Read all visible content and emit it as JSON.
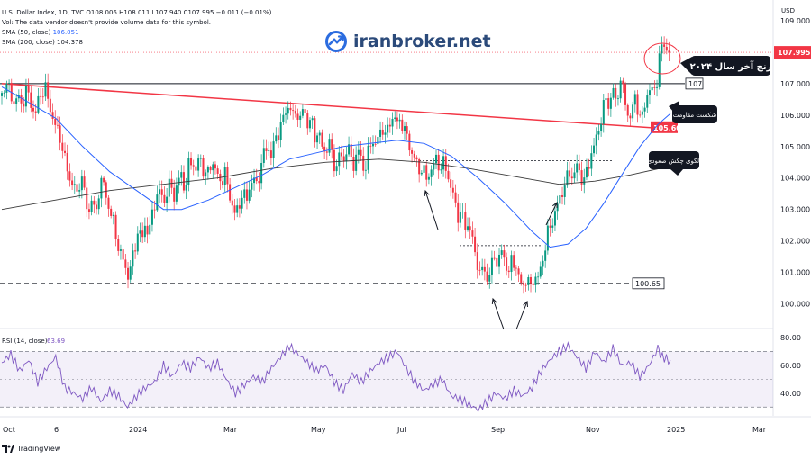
{
  "header": {
    "title": "U.S. Dollar Index, 1D, TVC",
    "ohlc": "O108.006 H108.011 L107.940 C107.995 −0.011 (−0.01%)",
    "vol": "Vol: The data vendor doesn't provide volume data for this symbol.",
    "sma50_label": "SMA (50, close)",
    "sma50_value": "106.051",
    "sma200_label": "SMA (200, close)",
    "sma200_value": "104.378"
  },
  "logo": {
    "text": "iranbroker.net"
  },
  "footer": {
    "brand": "TradingView"
  },
  "colors": {
    "up": "#089981",
    "down": "#f23645",
    "sma50": "#2962ff",
    "sma200": "#3a3a3a",
    "rsi": "#7e57c2",
    "trendline": "#f23645",
    "annotation_box": "#131722"
  },
  "chart_data": [
    {
      "type": "candlestick",
      "unit": "USD",
      "ylim": [
        99.3,
        109.6
      ],
      "y_ticks": [
        "109.000",
        "108.000",
        "107.000",
        "106.000",
        "105.000",
        "104.000",
        "103.000",
        "102.000",
        "101.000",
        "100.000"
      ],
      "x_ticks": [
        "Oct",
        "6",
        "2024",
        "Mar",
        "May",
        "Jul",
        "Sep",
        "Nov",
        "2025",
        "Mar"
      ],
      "last_price": "107.995",
      "levels": [
        {
          "label": "107",
          "value": 107.0
        },
        {
          "label": "105.60",
          "value": 105.6
        },
        {
          "label": "100.65",
          "value": 100.65
        }
      ],
      "annotations": [
        {
          "text": "رنج آخر سال ۲۰۲۴"
        },
        {
          "text": "شکست مقاومت"
        },
        {
          "text": "الگوی چکش صعودی"
        }
      ],
      "close_path": [
        [
          0,
          106.6
        ],
        [
          4,
          107.1
        ],
        [
          8,
          106.8
        ],
        [
          13,
          106.4
        ],
        [
          18,
          106.6
        ],
        [
          22,
          106.3
        ],
        [
          27,
          106.8
        ],
        [
          32,
          106.4
        ],
        [
          37,
          106.0
        ],
        [
          42,
          106.6
        ],
        [
          48,
          106.9
        ],
        [
          52,
          106.4
        ],
        [
          56,
          106.0
        ],
        [
          60,
          105.6
        ],
        [
          65,
          105.3
        ],
        [
          70,
          104.6
        ],
        [
          75,
          104.0
        ],
        [
          80,
          103.8
        ],
        [
          84,
          103.4
        ],
        [
          88,
          104.2
        ],
        [
          92,
          103.5
        ],
        [
          96,
          102.8
        ],
        [
          100,
          103.4
        ],
        [
          104,
          102.7
        ],
        [
          108,
          103.6
        ],
        [
          112,
          104.0
        ],
        [
          116,
          103.4
        ],
        [
          120,
          103.0
        ],
        [
          124,
          102.6
        ],
        [
          128,
          102.0
        ],
        [
          132,
          101.6
        ],
        [
          136,
          101.3
        ],
        [
          140,
          100.9
        ],
        [
          144,
          101.2
        ],
        [
          148,
          101.8
        ],
        [
          152,
          102.4
        ],
        [
          156,
          102.0
        ],
        [
          160,
          102.6
        ],
        [
          164,
          102.2
        ],
        [
          168,
          103.0
        ],
        [
          172,
          103.4
        ],
        [
          176,
          103.6
        ],
        [
          180,
          103.2
        ],
        [
          184,
          103.6
        ],
        [
          188,
          103.8
        ],
        [
          192,
          103.4
        ],
        [
          196,
          103.9
        ],
        [
          200,
          104.1
        ],
        [
          204,
          103.6
        ],
        [
          208,
          104.4
        ],
        [
          212,
          104.6
        ],
        [
          216,
          104.2
        ],
        [
          220,
          104.7
        ],
        [
          224,
          104.3
        ],
        [
          228,
          104.0
        ],
        [
          232,
          104.4
        ],
        [
          236,
          104.5
        ],
        [
          240,
          104.0
        ],
        [
          244,
          103.9
        ],
        [
          248,
          104.2
        ],
        [
          252,
          103.6
        ],
        [
          256,
          103.2
        ],
        [
          260,
          102.8
        ],
        [
          264,
          103.1
        ],
        [
          268,
          103.6
        ],
        [
          272,
          103.2
        ],
        [
          276,
          103.8
        ],
        [
          280,
          104.0
        ],
        [
          284,
          103.7
        ],
        [
          288,
          104.4
        ],
        [
          292,
          104.8
        ],
        [
          296,
          105.0
        ],
        [
          300,
          104.7
        ],
        [
          304,
          105.2
        ],
        [
          308,
          105.5
        ],
        [
          312,
          105.8
        ],
        [
          316,
          106.1
        ],
        [
          320,
          106.4
        ],
        [
          324,
          105.9
        ],
        [
          328,
          106.2
        ],
        [
          332,
          105.8
        ],
        [
          336,
          106.3
        ],
        [
          340,
          105.7
        ],
        [
          344,
          105.9
        ],
        [
          348,
          105.3
        ],
        [
          352,
          105.5
        ],
        [
          356,
          105.0
        ],
        [
          360,
          104.8
        ],
        [
          364,
          105.2
        ],
        [
          368,
          104.6
        ],
        [
          372,
          104.3
        ],
        [
          376,
          104.8
        ],
        [
          380,
          104.5
        ],
        [
          384,
          105.0
        ],
        [
          388,
          104.7
        ],
        [
          392,
          104.4
        ],
        [
          396,
          104.9
        ],
        [
          400,
          104.6
        ],
        [
          404,
          104.2
        ],
        [
          408,
          104.8
        ],
        [
          412,
          105.3
        ],
        [
          416,
          105.0
        ],
        [
          420,
          105.4
        ],
        [
          424,
          105.6
        ],
        [
          428,
          105.3
        ],
        [
          432,
          105.8
        ],
        [
          436,
          106.0
        ],
        [
          440,
          105.7
        ],
        [
          444,
          105.9
        ],
        [
          448,
          105.5
        ],
        [
          452,
          105.2
        ],
        [
          456,
          104.8
        ],
        [
          460,
          104.6
        ],
        [
          464,
          104.2
        ],
        [
          468,
          104.4
        ],
        [
          472,
          103.9
        ],
        [
          476,
          104.2
        ],
        [
          480,
          104.4
        ],
        [
          484,
          104.6
        ],
        [
          488,
          104.3
        ],
        [
          492,
          104.5
        ],
        [
          496,
          104.1
        ],
        [
          500,
          103.7
        ],
        [
          504,
          103.2
        ],
        [
          508,
          102.8
        ],
        [
          512,
          102.9
        ],
        [
          516,
          102.4
        ],
        [
          520,
          102.6
        ],
        [
          524,
          101.9
        ],
        [
          528,
          101.5
        ],
        [
          532,
          100.9
        ],
        [
          536,
          101.2
        ],
        [
          540,
          100.8
        ],
        [
          544,
          101.0
        ],
        [
          548,
          101.6
        ],
        [
          552,
          101.2
        ],
        [
          556,
          101.7
        ],
        [
          560,
          101.4
        ],
        [
          564,
          100.9
        ],
        [
          568,
          101.5
        ],
        [
          572,
          101.2
        ],
        [
          576,
          100.7
        ],
        [
          580,
          100.6
        ],
        [
          584,
          100.8
        ],
        [
          588,
          100.5
        ],
        [
          592,
          100.9
        ],
        [
          596,
          100.7
        ],
        [
          600,
          101.2
        ],
        [
          604,
          101.7
        ],
        [
          608,
          102.3
        ],
        [
          612,
          102.6
        ],
        [
          616,
          102.9
        ],
        [
          620,
          103.3
        ],
        [
          624,
          103.6
        ],
        [
          628,
          103.9
        ],
        [
          632,
          104.2
        ],
        [
          636,
          104.0
        ],
        [
          640,
          104.4
        ],
        [
          644,
          104.1
        ],
        [
          648,
          103.9
        ],
        [
          652,
          104.3
        ],
        [
          656,
          104.8
        ],
        [
          660,
          105.1
        ],
        [
          664,
          105.5
        ],
        [
          668,
          106.1
        ],
        [
          672,
          106.5
        ],
        [
          676,
          106.3
        ],
        [
          680,
          106.9
        ],
        [
          684,
          106.2
        ],
        [
          688,
          107.3
        ],
        [
          692,
          106.6
        ],
        [
          696,
          106.1
        ],
        [
          700,
          105.9
        ],
        [
          704,
          106.6
        ],
        [
          708,
          106.2
        ],
        [
          712,
          105.8
        ],
        [
          716,
          106.4
        ],
        [
          720,
          106.9
        ],
        [
          724,
          106.7
        ],
        [
          728,
          106.9
        ],
        [
          732,
          107.9
        ],
        [
          736,
          108.3
        ],
        [
          740,
          108.1
        ],
        [
          744,
          108.0
        ]
      ],
      "series": [
        {
          "name": "SMA (50, close)",
          "points": [
            [
              0,
              106.9
            ],
            [
              30,
              106.4
            ],
            [
              60,
              105.9
            ],
            [
              90,
              105.0
            ],
            [
              120,
              104.2
            ],
            [
              150,
              103.6
            ],
            [
              180,
              103.0
            ],
            [
              200,
              103.0
            ],
            [
              230,
              103.3
            ],
            [
              260,
              103.7
            ],
            [
              290,
              104.1
            ],
            [
              320,
              104.6
            ],
            [
              350,
              104.8
            ],
            [
              380,
              105.0
            ],
            [
              410,
              105.1
            ],
            [
              440,
              105.2
            ],
            [
              470,
              105.1
            ],
            [
              500,
              104.7
            ],
            [
              530,
              104.0
            ],
            [
              560,
              103.2
            ],
            [
              590,
              102.3
            ],
            [
              610,
              101.8
            ],
            [
              630,
              101.9
            ],
            [
              650,
              102.4
            ],
            [
              670,
              103.2
            ],
            [
              690,
              104.1
            ],
            [
              710,
              105.0
            ],
            [
              730,
              105.7
            ],
            [
              744,
              106.05
            ]
          ]
        },
        {
          "name": "SMA (200, close)",
          "points": [
            [
              0,
              103.0
            ],
            [
              60,
              103.3
            ],
            [
              120,
              103.6
            ],
            [
              180,
              103.8
            ],
            [
              240,
              104.0
            ],
            [
              300,
              104.3
            ],
            [
              360,
              104.5
            ],
            [
              420,
              104.6
            ],
            [
              470,
              104.5
            ],
            [
              520,
              104.3
            ],
            [
              580,
              104.0
            ],
            [
              620,
              103.8
            ],
            [
              660,
              103.9
            ],
            [
              700,
              104.1
            ],
            [
              744,
              104.378
            ]
          ]
        }
      ]
    },
    {
      "type": "line",
      "title": "RSI (14, close)",
      "value_label": "63.69",
      "ylim": [
        25,
        82
      ],
      "y_ticks": [
        "80.00",
        "60.00",
        "40.00"
      ],
      "bands": [
        70,
        50,
        30
      ],
      "series": [
        {
          "name": "RSI (14, close)",
          "points": [
            [
              0,
              62
            ],
            [
              10,
              68
            ],
            [
              20,
              56
            ],
            [
              30,
              64
            ],
            [
              40,
              48
            ],
            [
              50,
              58
            ],
            [
              60,
              66
            ],
            [
              70,
              44
            ],
            [
              80,
              40
            ],
            [
              90,
              36
            ],
            [
              100,
              44
            ],
            [
              110,
              34
            ],
            [
              120,
              42
            ],
            [
              130,
              38
            ],
            [
              140,
              30
            ],
            [
              150,
              38
            ],
            [
              160,
              44
            ],
            [
              170,
              48
            ],
            [
              180,
              60
            ],
            [
              190,
              52
            ],
            [
              200,
              62
            ],
            [
              210,
              58
            ],
            [
              220,
              66
            ],
            [
              230,
              58
            ],
            [
              240,
              62
            ],
            [
              250,
              50
            ],
            [
              260,
              40
            ],
            [
              270,
              46
            ],
            [
              280,
              52
            ],
            [
              290,
              48
            ],
            [
              300,
              58
            ],
            [
              310,
              66
            ],
            [
              320,
              74
            ],
            [
              330,
              68
            ],
            [
              340,
              62
            ],
            [
              350,
              56
            ],
            [
              360,
              60
            ],
            [
              370,
              48
            ],
            [
              380,
              42
            ],
            [
              390,
              54
            ],
            [
              400,
              48
            ],
            [
              410,
              56
            ],
            [
              420,
              62
            ],
            [
              430,
              66
            ],
            [
              440,
              70
            ],
            [
              450,
              58
            ],
            [
              460,
              48
            ],
            [
              470,
              42
            ],
            [
              480,
              46
            ],
            [
              490,
              50
            ],
            [
              500,
              38
            ],
            [
              510,
              36
            ],
            [
              520,
              32
            ],
            [
              530,
              28
            ],
            [
              540,
              34
            ],
            [
              550,
              40
            ],
            [
              560,
              36
            ],
            [
              570,
              42
            ],
            [
              580,
              38
            ],
            [
              590,
              44
            ],
            [
              600,
              56
            ],
            [
              610,
              64
            ],
            [
              620,
              70
            ],
            [
              630,
              74
            ],
            [
              640,
              66
            ],
            [
              650,
              58
            ],
            [
              660,
              70
            ],
            [
              670,
              62
            ],
            [
              680,
              72
            ],
            [
              690,
              60
            ],
            [
              700,
              62
            ],
            [
              710,
              52
            ],
            [
              720,
              60
            ],
            [
              730,
              72
            ],
            [
              735,
              66
            ],
            [
              744,
              63.69
            ]
          ]
        }
      ]
    }
  ]
}
